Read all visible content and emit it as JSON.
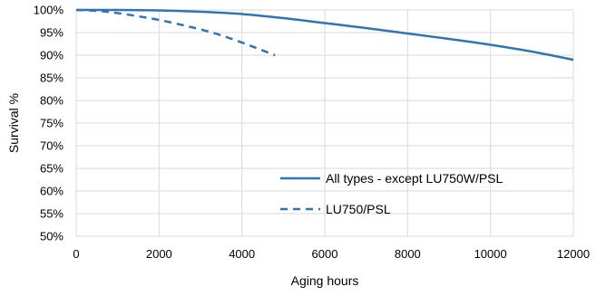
{
  "chart_data": {
    "type": "line",
    "title": "",
    "xlabel": "Aging hours",
    "ylabel": "Survival %",
    "xlim": [
      0,
      12000
    ],
    "ylim": [
      50,
      100
    ],
    "x_ticks": [
      0,
      2000,
      4000,
      6000,
      8000,
      10000,
      12000
    ],
    "x_tick_labels": [
      "0",
      "2000",
      "4000",
      "6000",
      "8000",
      "10000",
      "12000"
    ],
    "y_ticks": [
      50,
      55,
      60,
      65,
      70,
      75,
      80,
      85,
      90,
      95,
      100
    ],
    "y_tick_labels": [
      "50%",
      "55%",
      "60%",
      "65%",
      "70%",
      "75%",
      "80%",
      "85%",
      "90%",
      "95%",
      "100%"
    ],
    "grid": true,
    "legend_position": "bottom-right (inside plot)",
    "series": [
      {
        "name": "All types - except LU750W/PSL",
        "style": "solid",
        "color": "#2e75b6",
        "x": [
          0,
          1000,
          2000,
          3000,
          4000,
          5000,
          6000,
          7000,
          8000,
          9000,
          10000,
          11000,
          12000
        ],
        "y": [
          100,
          100,
          99.9,
          99.6,
          99.1,
          98.2,
          97.1,
          96.0,
          94.8,
          93.6,
          92.3,
          90.8,
          89.0
        ]
      },
      {
        "name": "LU750/PSL",
        "style": "dashed",
        "color": "#2e75b6",
        "x": [
          0,
          500,
          1000,
          1500,
          2000,
          2500,
          3000,
          3500,
          4000,
          4400,
          4800
        ],
        "y": [
          100,
          99.8,
          99.3,
          98.6,
          97.8,
          96.8,
          95.7,
          94.4,
          92.8,
          91.4,
          90.0
        ]
      }
    ]
  }
}
